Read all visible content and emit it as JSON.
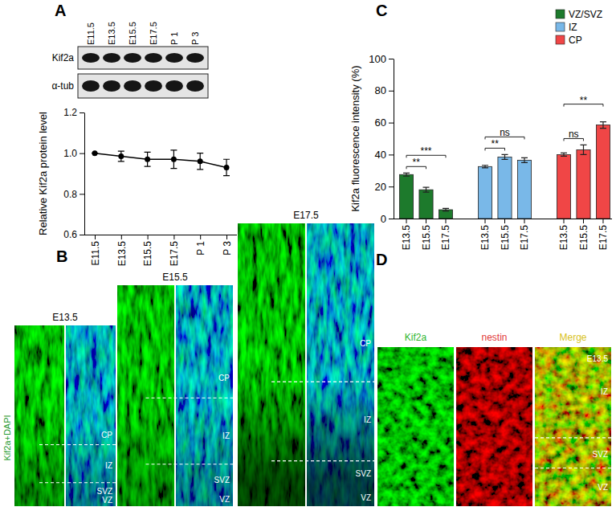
{
  "panel_labels": [
    "A",
    "B",
    "C",
    "D"
  ],
  "blot": {
    "rows": [
      "Kif2a",
      "α-tub"
    ]
  },
  "chart_data": [
    {
      "type": "line",
      "categories": [
        "E11.5",
        "E13.5",
        "E15.5",
        "E17.5",
        "P 1",
        "P 3"
      ],
      "values": [
        1.0,
        0.985,
        0.97,
        0.97,
        0.96,
        0.93
      ],
      "errors": [
        0,
        0.025,
        0.035,
        0.045,
        0.04,
        0.04
      ],
      "y_label": "Relative Kif2a protein level",
      "ylim": [
        0.6,
        1.2
      ],
      "yticks": [
        0.6,
        0.8,
        {
          "value": 1,
          "label": "1.0"
        },
        1.2
      ],
      "color": "#000000",
      "marker": "circle"
    },
    {
      "type": "bar",
      "categories": [
        "E13.5",
        "E15.5",
        "E17.5"
      ],
      "series": [
        {
          "name": "VZ/SVZ",
          "color": "#1d7a2c",
          "values": [
            27.5,
            18,
            5.5
          ],
          "errors": [
            1,
            1.5,
            0.8
          ]
        },
        {
          "name": "IZ",
          "color": "#79b8e8",
          "values": [
            32.5,
            38.5,
            36.5
          ],
          "errors": [
            0.8,
            1.5,
            1.5
          ]
        },
        {
          "name": "CP",
          "color": "#f04646",
          "values": [
            40,
            43,
            58.5
          ],
          "errors": [
            1,
            3,
            2
          ]
        }
      ],
      "y_label": "Kif2a fluorescence intensity (%)",
      "ylim": [
        0,
        100
      ],
      "yticks": [
        0,
        20,
        40,
        60,
        80,
        100
      ],
      "legend": "top-right",
      "annotations": [
        {
          "series": "VZ/SVZ",
          "from": "E13.5",
          "to": "E15.5",
          "text": "**"
        },
        {
          "series": "VZ/SVZ",
          "from": "E13.5",
          "to": "E17.5",
          "text": "***"
        },
        {
          "series": "IZ",
          "from": "E13.5",
          "to": "E15.5",
          "text": "**"
        },
        {
          "series": "IZ",
          "from": "E13.5",
          "to": "E17.5",
          "text": "ns"
        },
        {
          "series": "CP",
          "from": "E13.5",
          "to": "E15.5",
          "text": "ns"
        },
        {
          "series": "CP",
          "from": "E13.5",
          "to": "E17.5",
          "text": "**"
        }
      ]
    }
  ],
  "image_panels": {
    "B": {
      "label": "Kif2a+DAPI",
      "stages": [
        {
          "stage": "E13.5",
          "zones": [
            "CP",
            "IZ",
            "SVZ",
            "VZ"
          ]
        },
        {
          "stage": "E15.5",
          "zones": [
            "CP",
            "IZ",
            "SVZ",
            "VZ"
          ]
        },
        {
          "stage": "E17.5",
          "zones": [
            "CP",
            "IZ",
            "SVZ",
            "VZ"
          ]
        }
      ]
    },
    "D": {
      "channels": [
        "Kif2a",
        "nestin",
        "Merge"
      ],
      "stage": "E13.5",
      "zones": [
        "IZ",
        "SVZ",
        "VZ"
      ]
    }
  }
}
